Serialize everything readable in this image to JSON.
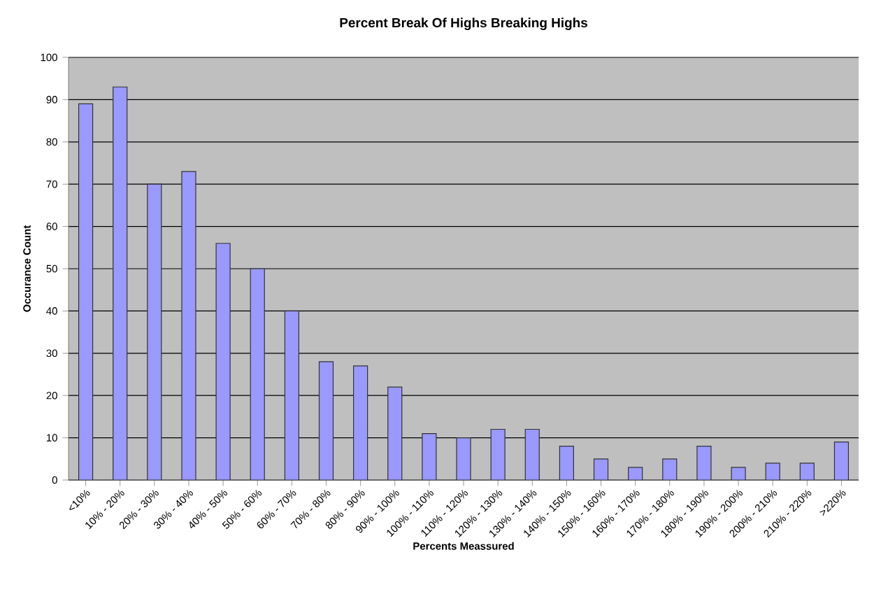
{
  "chart_data": {
    "type": "bar",
    "title": "Percent Break Of Highs Breaking Highs",
    "xlabel": "Percents Meassured",
    "ylabel": "Occurance Count",
    "categories": [
      "<10%",
      "10% - 20%",
      "20% - 30%",
      "30% - 40%",
      "40% - 50%",
      "50% - 60%",
      "60% - 70%",
      "70% - 80%",
      "80% - 90%",
      "90% - 100%",
      "100% - 110%",
      "110% - 120%",
      "120% - 130%",
      "130% - 140%",
      "140% - 150%",
      "150% - 160%",
      "160% - 170%",
      "170% - 180%",
      "180% - 190%",
      "190% - 200%",
      "200% - 210%",
      "210% - 220%",
      ">220%"
    ],
    "values": [
      89,
      93,
      70,
      73,
      56,
      50,
      40,
      28,
      27,
      22,
      11,
      10,
      12,
      12,
      8,
      5,
      3,
      5,
      8,
      3,
      4,
      4,
      9
    ],
    "color": "#9999ff",
    "ylim": [
      0,
      100
    ],
    "yticks": [
      0,
      10,
      20,
      30,
      40,
      50,
      60,
      70,
      80,
      90,
      100
    ],
    "grid": "y"
  }
}
